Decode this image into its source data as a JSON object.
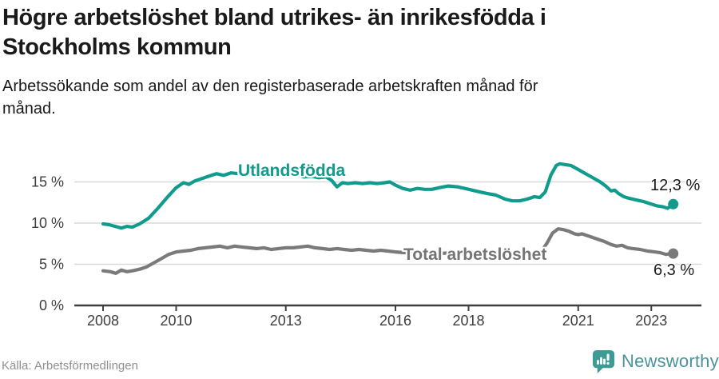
{
  "header": {
    "title_lines": [
      "Högre arbetslöshet bland utrikes- än inrikesfödda i",
      "Stockholms kommun"
    ],
    "subtitle_lines": [
      "Arbetssökande som andel av den registerbaserade arbetskraften månad för",
      "månad."
    ]
  },
  "chart_data": {
    "type": "line",
    "title": "Högre arbetslöshet bland utrikes- än inrikesfödda i Stockholms kommun",
    "subtitle": "Arbetssökande som andel av den registerbaserade arbetskraften månad för månad.",
    "unit": "%",
    "grid": "horizontal",
    "legend_position": "inline-labels",
    "x_axis": {
      "ticks": [
        2008,
        2010,
        2013,
        2016,
        2018,
        2021,
        2023
      ],
      "range": [
        2008.0,
        2023.6
      ]
    },
    "y_axis": {
      "tick_labels": [
        "0 %",
        "5 %",
        "10 %",
        "15 %"
      ],
      "tick_values": [
        0,
        5,
        10,
        15
      ],
      "range": [
        0,
        17.5
      ]
    },
    "series": [
      {
        "name": "Utlandsfödda",
        "color": "#109b8d",
        "end_value": 12.3,
        "end_label": "12,3 %",
        "points": [
          [
            2008.0,
            9.9
          ],
          [
            2008.17,
            9.8
          ],
          [
            2008.33,
            9.6
          ],
          [
            2008.5,
            9.4
          ],
          [
            2008.65,
            9.6
          ],
          [
            2008.8,
            9.5
          ],
          [
            2009.0,
            9.9
          ],
          [
            2009.25,
            10.6
          ],
          [
            2009.5,
            11.8
          ],
          [
            2009.75,
            13.1
          ],
          [
            2010.0,
            14.3
          ],
          [
            2010.2,
            14.9
          ],
          [
            2010.35,
            14.7
          ],
          [
            2010.5,
            15.1
          ],
          [
            2010.7,
            15.4
          ],
          [
            2010.9,
            15.7
          ],
          [
            2011.1,
            16.0
          ],
          [
            2011.3,
            15.8
          ],
          [
            2011.5,
            16.1
          ],
          [
            2011.7,
            16.0
          ],
          [
            2011.9,
            15.8
          ],
          [
            2012.1,
            16.0
          ],
          [
            2012.3,
            15.7
          ],
          [
            2012.5,
            15.9
          ],
          [
            2012.7,
            15.8
          ],
          [
            2012.9,
            15.9
          ],
          [
            2013.1,
            15.8
          ],
          [
            2013.3,
            15.9
          ],
          [
            2013.5,
            15.6
          ],
          [
            2013.7,
            15.7
          ],
          [
            2013.9,
            15.5
          ],
          [
            2014.1,
            15.6
          ],
          [
            2014.25,
            15.2
          ],
          [
            2014.4,
            14.4
          ],
          [
            2014.55,
            14.9
          ],
          [
            2014.7,
            14.8
          ],
          [
            2014.9,
            14.9
          ],
          [
            2015.1,
            14.8
          ],
          [
            2015.3,
            14.9
          ],
          [
            2015.5,
            14.8
          ],
          [
            2015.7,
            14.9
          ],
          [
            2015.85,
            15.0
          ],
          [
            2016.0,
            14.6
          ],
          [
            2016.2,
            14.2
          ],
          [
            2016.4,
            14.0
          ],
          [
            2016.6,
            14.2
          ],
          [
            2016.8,
            14.1
          ],
          [
            2017.0,
            14.1
          ],
          [
            2017.2,
            14.3
          ],
          [
            2017.45,
            14.5
          ],
          [
            2017.7,
            14.4
          ],
          [
            2017.9,
            14.2
          ],
          [
            2018.1,
            14.0
          ],
          [
            2018.3,
            13.8
          ],
          [
            2018.5,
            13.6
          ],
          [
            2018.75,
            13.4
          ],
          [
            2019.0,
            12.9
          ],
          [
            2019.2,
            12.7
          ],
          [
            2019.4,
            12.7
          ],
          [
            2019.6,
            12.9
          ],
          [
            2019.8,
            13.2
          ],
          [
            2019.95,
            13.1
          ],
          [
            2020.1,
            13.8
          ],
          [
            2020.25,
            15.8
          ],
          [
            2020.4,
            17.0
          ],
          [
            2020.5,
            17.2
          ],
          [
            2020.65,
            17.1
          ],
          [
            2020.8,
            17.0
          ],
          [
            2021.0,
            16.5
          ],
          [
            2021.2,
            16.0
          ],
          [
            2021.4,
            15.5
          ],
          [
            2021.6,
            15.0
          ],
          [
            2021.75,
            14.5
          ],
          [
            2021.9,
            13.9
          ],
          [
            2022.0,
            14.0
          ],
          [
            2022.1,
            13.6
          ],
          [
            2022.25,
            13.2
          ],
          [
            2022.4,
            13.0
          ],
          [
            2022.6,
            12.8
          ],
          [
            2022.8,
            12.6
          ],
          [
            2023.0,
            12.3
          ],
          [
            2023.15,
            12.1
          ],
          [
            2023.3,
            12.0
          ],
          [
            2023.45,
            11.8
          ],
          [
            2023.6,
            12.3
          ]
        ]
      },
      {
        "name": "Total arbetslöshet",
        "color": "#7a7a7a",
        "end_value": 6.3,
        "end_label": "6,3 %",
        "points": [
          [
            2008.0,
            4.2
          ],
          [
            2008.2,
            4.1
          ],
          [
            2008.35,
            3.9
          ],
          [
            2008.5,
            4.3
          ],
          [
            2008.65,
            4.1
          ],
          [
            2008.8,
            4.2
          ],
          [
            2009.0,
            4.4
          ],
          [
            2009.2,
            4.7
          ],
          [
            2009.4,
            5.2
          ],
          [
            2009.6,
            5.7
          ],
          [
            2009.8,
            6.2
          ],
          [
            2010.0,
            6.5
          ],
          [
            2010.2,
            6.6
          ],
          [
            2010.4,
            6.7
          ],
          [
            2010.6,
            6.9
          ],
          [
            2010.8,
            7.0
          ],
          [
            2011.0,
            7.1
          ],
          [
            2011.2,
            7.2
          ],
          [
            2011.4,
            7.0
          ],
          [
            2011.6,
            7.2
          ],
          [
            2011.8,
            7.1
          ],
          [
            2012.0,
            7.0
          ],
          [
            2012.2,
            6.9
          ],
          [
            2012.4,
            7.0
          ],
          [
            2012.6,
            6.8
          ],
          [
            2012.8,
            6.9
          ],
          [
            2013.0,
            7.0
          ],
          [
            2013.2,
            7.0
          ],
          [
            2013.4,
            7.1
          ],
          [
            2013.6,
            7.2
          ],
          [
            2013.8,
            7.0
          ],
          [
            2014.0,
            6.9
          ],
          [
            2014.2,
            6.8
          ],
          [
            2014.4,
            6.9
          ],
          [
            2014.6,
            6.8
          ],
          [
            2014.8,
            6.7
          ],
          [
            2015.0,
            6.8
          ],
          [
            2015.2,
            6.7
          ],
          [
            2015.4,
            6.6
          ],
          [
            2015.6,
            6.7
          ],
          [
            2015.8,
            6.6
          ],
          [
            2016.0,
            6.5
          ],
          [
            2016.3,
            6.4
          ],
          [
            2016.6,
            6.3
          ],
          [
            2016.9,
            6.3
          ],
          [
            2017.2,
            6.3
          ],
          [
            2017.5,
            6.4
          ],
          [
            2017.8,
            6.3
          ],
          [
            2018.1,
            6.2
          ],
          [
            2018.4,
            6.2
          ],
          [
            2018.7,
            6.1
          ],
          [
            2019.0,
            6.0
          ],
          [
            2019.3,
            6.0
          ],
          [
            2019.6,
            6.1
          ],
          [
            2019.85,
            6.3
          ],
          [
            2020.0,
            6.6
          ],
          [
            2020.15,
            7.6
          ],
          [
            2020.3,
            8.8
          ],
          [
            2020.45,
            9.3
          ],
          [
            2020.6,
            9.2
          ],
          [
            2020.75,
            9.0
          ],
          [
            2020.9,
            8.7
          ],
          [
            2021.0,
            8.6
          ],
          [
            2021.1,
            8.7
          ],
          [
            2021.3,
            8.4
          ],
          [
            2021.5,
            8.1
          ],
          [
            2021.7,
            7.8
          ],
          [
            2021.9,
            7.4
          ],
          [
            2022.05,
            7.2
          ],
          [
            2022.2,
            7.3
          ],
          [
            2022.35,
            7.0
          ],
          [
            2022.5,
            6.9
          ],
          [
            2022.7,
            6.8
          ],
          [
            2022.9,
            6.6
          ],
          [
            2023.1,
            6.5
          ],
          [
            2023.25,
            6.4
          ],
          [
            2023.4,
            6.2
          ],
          [
            2023.6,
            6.3
          ]
        ]
      }
    ]
  },
  "footer": {
    "source": "Källa: Arbetsförmedlingen",
    "brand": "Newsworthy"
  },
  "colors": {
    "accent_teal": "#109b8d",
    "series_gray": "#7a7a7a",
    "grid": "#d9d9d9",
    "axis": "#3f3f3f",
    "axis_text": "#3d3d3d",
    "brand_teal": "#3e9a94"
  }
}
